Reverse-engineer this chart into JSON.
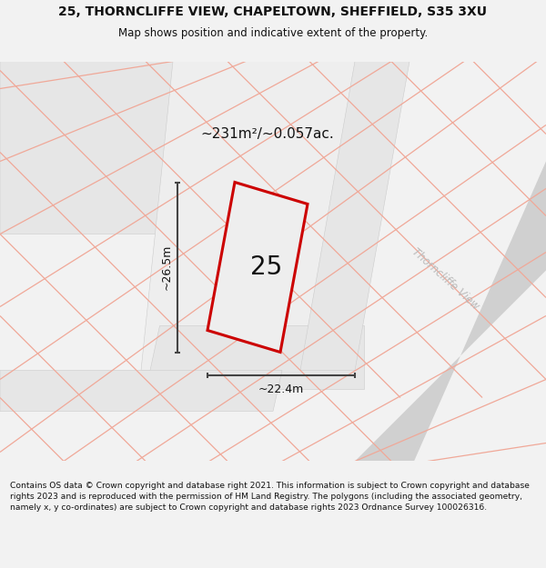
{
  "title": "25, THORNCLIFFE VIEW, CHAPELTOWN, SHEFFIELD, S35 3XU",
  "subtitle": "Map shows position and indicative extent of the property.",
  "area_label": "~231m²/~0.057ac.",
  "width_label": "~22.4m",
  "height_label": "~26.5m",
  "plot_number": "25",
  "street_label": "Thorncliffe View",
  "footer": "Contains OS data © Crown copyright and database right 2021. This information is subject to Crown copyright and database rights 2023 and is reproduced with the permission of HM Land Registry. The polygons (including the associated geometry, namely x, y co-ordinates) are subject to Crown copyright and database rights 2023 Ordnance Survey 100026316.",
  "bg_color": "#f2f2f2",
  "map_bg": "#ffffff",
  "parcel_fill": "#e8e8e8",
  "parcel_edge": "#e8b4aa",
  "parcel_edge2": "#cccccc",
  "road_fill": "#d4d4d4",
  "plot_fill": "#e8e8e8",
  "plot_edge": "#cc0000",
  "road_label_color": "#c0c0c0",
  "dim_color": "#333333",
  "text_color": "#111111"
}
